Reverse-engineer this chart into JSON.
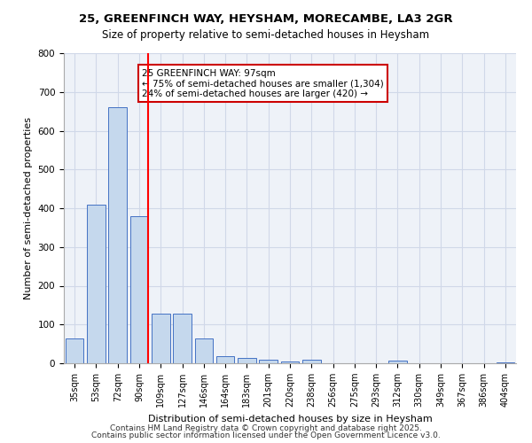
{
  "title1": "25, GREENFINCH WAY, HEYSHAM, MORECAMBE, LA3 2GR",
  "title2": "Size of property relative to semi-detached houses in Heysham",
  "xlabel": "Distribution of semi-detached houses by size in Heysham",
  "ylabel": "Number of semi-detached properties",
  "categories": [
    "35sqm",
    "53sqm",
    "72sqm",
    "90sqm",
    "109sqm",
    "127sqm",
    "146sqm",
    "164sqm",
    "183sqm",
    "201sqm",
    "220sqm",
    "238sqm",
    "256sqm",
    "275sqm",
    "293sqm",
    "312sqm",
    "330sqm",
    "349sqm",
    "367sqm",
    "386sqm",
    "404sqm"
  ],
  "values": [
    65,
    410,
    660,
    380,
    128,
    128,
    65,
    18,
    13,
    10,
    5,
    9,
    0,
    0,
    0,
    7,
    0,
    0,
    0,
    0,
    2
  ],
  "bar_color": "#c5d8ed",
  "bar_edge_color": "#4472c4",
  "red_line_x": 3,
  "red_line_value": 97,
  "annotation_text": "25 GREENFINCH WAY: 97sqm\n← 75% of semi-detached houses are smaller (1,304)\n24% of semi-detached houses are larger (420) →",
  "annotation_box_color": "#ffffff",
  "annotation_box_edge": "#cc0000",
  "ylim": [
    0,
    800
  ],
  "yticks": [
    0,
    100,
    200,
    300,
    400,
    500,
    600,
    700,
    800
  ],
  "grid_color": "#d0d8e8",
  "background_color": "#eef2f8",
  "footer1": "Contains HM Land Registry data © Crown copyright and database right 2025.",
  "footer2": "Contains public sector information licensed under the Open Government Licence v3.0."
}
